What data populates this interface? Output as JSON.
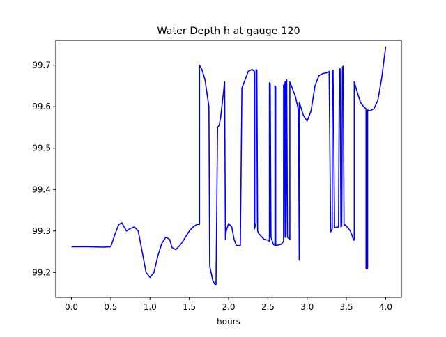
{
  "chart_data": {
    "type": "line",
    "title": "Water Depth h at gauge 120",
    "xlabel": "hours",
    "ylabel": "",
    "xlim": [
      -0.2,
      4.2
    ],
    "ylim": [
      99.14,
      99.76
    ],
    "xticks": [
      0.0,
      0.5,
      1.0,
      1.5,
      2.0,
      2.5,
      3.0,
      3.5,
      4.0
    ],
    "xtick_labels": [
      "0.0",
      "0.5",
      "1.0",
      "1.5",
      "2.0",
      "2.5",
      "3.0",
      "3.5",
      "4.0"
    ],
    "yticks": [
      99.2,
      99.3,
      99.4,
      99.5,
      99.6,
      99.7
    ],
    "ytick_labels": [
      "99.2",
      "99.3",
      "99.4",
      "99.5",
      "99.6",
      "99.7"
    ],
    "grid": false,
    "series": [
      {
        "color": "#0000ff",
        "x": [
          0.0,
          0.2,
          0.4,
          0.5,
          0.55,
          0.6,
          0.64,
          0.67,
          0.7,
          0.74,
          0.8,
          0.85,
          0.9,
          0.95,
          1.0,
          1.05,
          1.1,
          1.15,
          1.2,
          1.25,
          1.28,
          1.33,
          1.4,
          1.5,
          1.55,
          1.6,
          1.63,
          1.63,
          1.66,
          1.7,
          1.75,
          1.76,
          1.8,
          1.83,
          1.84,
          1.86,
          1.88,
          1.9,
          1.95,
          1.96,
          1.97,
          2.0,
          2.04,
          2.07,
          2.1,
          2.15,
          2.17,
          2.18,
          2.2,
          2.25,
          2.3,
          2.33,
          2.33,
          2.35,
          2.35,
          2.36,
          2.37,
          2.38,
          2.45,
          2.5,
          2.52,
          2.52,
          2.53,
          2.54,
          2.57,
          2.59,
          2.59,
          2.6,
          2.6,
          2.63,
          2.67,
          2.7,
          2.7,
          2.71,
          2.72,
          2.72,
          2.73,
          2.73,
          2.74,
          2.75,
          2.78,
          2.78,
          2.8,
          2.85,
          2.88,
          2.89,
          2.9,
          2.9,
          2.91,
          2.95,
          3.0,
          3.05,
          3.1,
          3.15,
          3.2,
          3.25,
          3.28,
          3.3,
          3.31,
          3.32,
          3.32,
          3.33,
          3.35,
          3.4,
          3.41,
          3.42,
          3.43,
          3.44,
          3.45,
          3.46,
          3.47,
          3.48,
          3.5,
          3.55,
          3.58,
          3.59,
          3.6,
          3.6,
          3.63,
          3.68,
          3.72,
          3.75,
          3.75,
          3.76,
          3.77,
          3.77,
          3.8,
          3.85,
          3.9,
          3.95,
          4.0
        ],
        "y": [
          99.262,
          99.262,
          99.261,
          99.262,
          99.29,
          99.315,
          99.32,
          99.31,
          99.3,
          99.305,
          99.31,
          99.3,
          99.25,
          99.2,
          99.188,
          99.2,
          99.24,
          99.27,
          99.285,
          99.28,
          99.26,
          99.255,
          99.27,
          99.3,
          99.31,
          99.316,
          99.316,
          99.7,
          99.69,
          99.665,
          99.6,
          99.215,
          99.18,
          99.17,
          99.17,
          99.55,
          99.555,
          99.575,
          99.66,
          99.28,
          99.3,
          99.318,
          99.31,
          99.28,
          99.265,
          99.265,
          99.645,
          99.65,
          99.66,
          99.685,
          99.69,
          99.685,
          99.305,
          99.32,
          99.69,
          99.688,
          99.3,
          99.295,
          99.28,
          99.278,
          99.275,
          99.658,
          99.656,
          99.285,
          99.268,
          99.265,
          99.65,
          99.648,
          99.265,
          99.266,
          99.268,
          99.275,
          99.652,
          99.655,
          99.285,
          99.66,
          99.66,
          99.29,
          99.665,
          99.285,
          99.28,
          99.66,
          99.65,
          99.625,
          99.6,
          99.59,
          99.23,
          99.61,
          99.605,
          99.58,
          99.565,
          99.59,
          99.65,
          99.675,
          99.68,
          99.682,
          99.685,
          99.298,
          99.302,
          99.305,
          99.685,
          99.688,
          99.308,
          99.31,
          99.69,
          99.692,
          99.31,
          99.312,
          99.695,
          99.698,
          99.313,
          99.315,
          99.312,
          99.3,
          99.285,
          99.278,
          99.278,
          99.66,
          99.64,
          99.61,
          99.6,
          99.595,
          99.21,
          99.208,
          99.21,
          99.592,
          99.59,
          99.595,
          99.615,
          99.67,
          99.745
        ]
      }
    ]
  }
}
